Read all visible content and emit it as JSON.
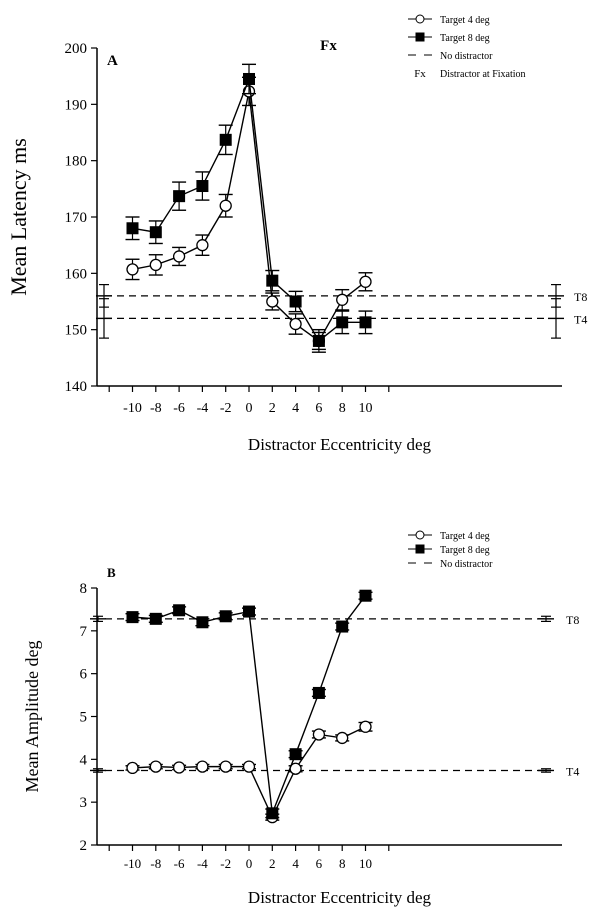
{
  "chart_data": [
    {
      "panel_label": "A",
      "type": "line",
      "xlabel": "Distractor Eccentricity deg",
      "ylabel": "Mean Latency ms",
      "xticks": [
        -10,
        -8,
        -6,
        -4,
        -2,
        0,
        2,
        4,
        6,
        8,
        10
      ],
      "yticks": [
        140,
        150,
        160,
        170,
        180,
        190,
        200
      ],
      "ylim": [
        140,
        200
      ],
      "grid": false,
      "legend_position": "top-right",
      "annotation": "Fx",
      "series": [
        {
          "name": "Target 4 deg",
          "marker": "open-circle",
          "x": [
            -10,
            -8,
            -6,
            -4,
            -2,
            0,
            2,
            4,
            6,
            8,
            10
          ],
          "y": [
            160.7,
            161.5,
            163.0,
            165.0,
            172.0,
            192.3,
            155.0,
            151.0,
            148.0,
            155.3,
            158.5
          ],
          "err": [
            1.8,
            1.8,
            1.6,
            1.8,
            2.0,
            2.5,
            1.5,
            1.8,
            1.5,
            1.8,
            1.6
          ]
        },
        {
          "name": "Target 8 deg",
          "marker": "filled-square",
          "x": [
            -10,
            -8,
            -6,
            -4,
            -2,
            0,
            2,
            4,
            6,
            8,
            10
          ],
          "y": [
            168.0,
            167.3,
            173.7,
            175.5,
            183.7,
            194.5,
            158.7,
            155.0,
            148.0,
            151.3,
            151.3
          ],
          "err": [
            2.0,
            2.0,
            2.5,
            2.5,
            2.6,
            2.6,
            1.8,
            1.8,
            2.0,
            2.0,
            2.0
          ]
        }
      ],
      "baselines": [
        {
          "label": "T8",
          "value": 156.0,
          "err": 2.0
        },
        {
          "label": "T4",
          "value": 152.0,
          "err": 3.5
        }
      ],
      "legend": [
        {
          "symbol": "open-circle",
          "label": "Target 4 deg"
        },
        {
          "symbol": "filled-square",
          "label": "Target 8 deg"
        },
        {
          "symbol": "dash",
          "label": "No distractor"
        },
        {
          "symbol": "Fx",
          "label": "Distractor at Fixation"
        }
      ]
    },
    {
      "panel_label": "B",
      "type": "line",
      "xlabel": "Distractor Eccentricity deg",
      "ylabel": "Mean  Amplitude deg",
      "xticks": [
        -10,
        -8,
        -6,
        -4,
        -2,
        0,
        2,
        4,
        6,
        8,
        10
      ],
      "yticks": [
        2,
        3,
        4,
        5,
        6,
        7,
        8
      ],
      "ylim": [
        2,
        8
      ],
      "grid": false,
      "legend_position": "top-right",
      "series": [
        {
          "name": "Target 4 deg",
          "marker": "open-circle",
          "x": [
            -10,
            -8,
            -6,
            -4,
            -2,
            0,
            2,
            4,
            6,
            8,
            10
          ],
          "y": [
            3.8,
            3.83,
            3.81,
            3.83,
            3.83,
            3.83,
            2.65,
            3.78,
            4.58,
            4.5,
            4.76
          ],
          "err": [
            0.05,
            0.05,
            0.05,
            0.05,
            0.05,
            0.05,
            0.07,
            0.07,
            0.08,
            0.07,
            0.1
          ]
        },
        {
          "name": "Target 8 deg",
          "marker": "filled-square",
          "x": [
            -10,
            -8,
            -6,
            -4,
            -2,
            0,
            2,
            4,
            6,
            8,
            10
          ],
          "y": [
            7.32,
            7.28,
            7.48,
            7.2,
            7.34,
            7.45,
            2.74,
            4.12,
            5.55,
            7.1,
            7.82
          ],
          "err": [
            0.08,
            0.08,
            0.08,
            0.08,
            0.08,
            0.08,
            0.1,
            0.08,
            0.08,
            0.08,
            0.08
          ]
        }
      ],
      "baselines": [
        {
          "label": "T8",
          "value": 7.28,
          "err": 0.06
        },
        {
          "label": "T4",
          "value": 3.74,
          "err": 0.04
        }
      ],
      "legend": [
        {
          "symbol": "open-circle",
          "label": "Target 4 deg"
        },
        {
          "symbol": "filled-square",
          "label": "Target 8 deg"
        },
        {
          "symbol": "dash",
          "label": "No distractor"
        }
      ]
    }
  ]
}
